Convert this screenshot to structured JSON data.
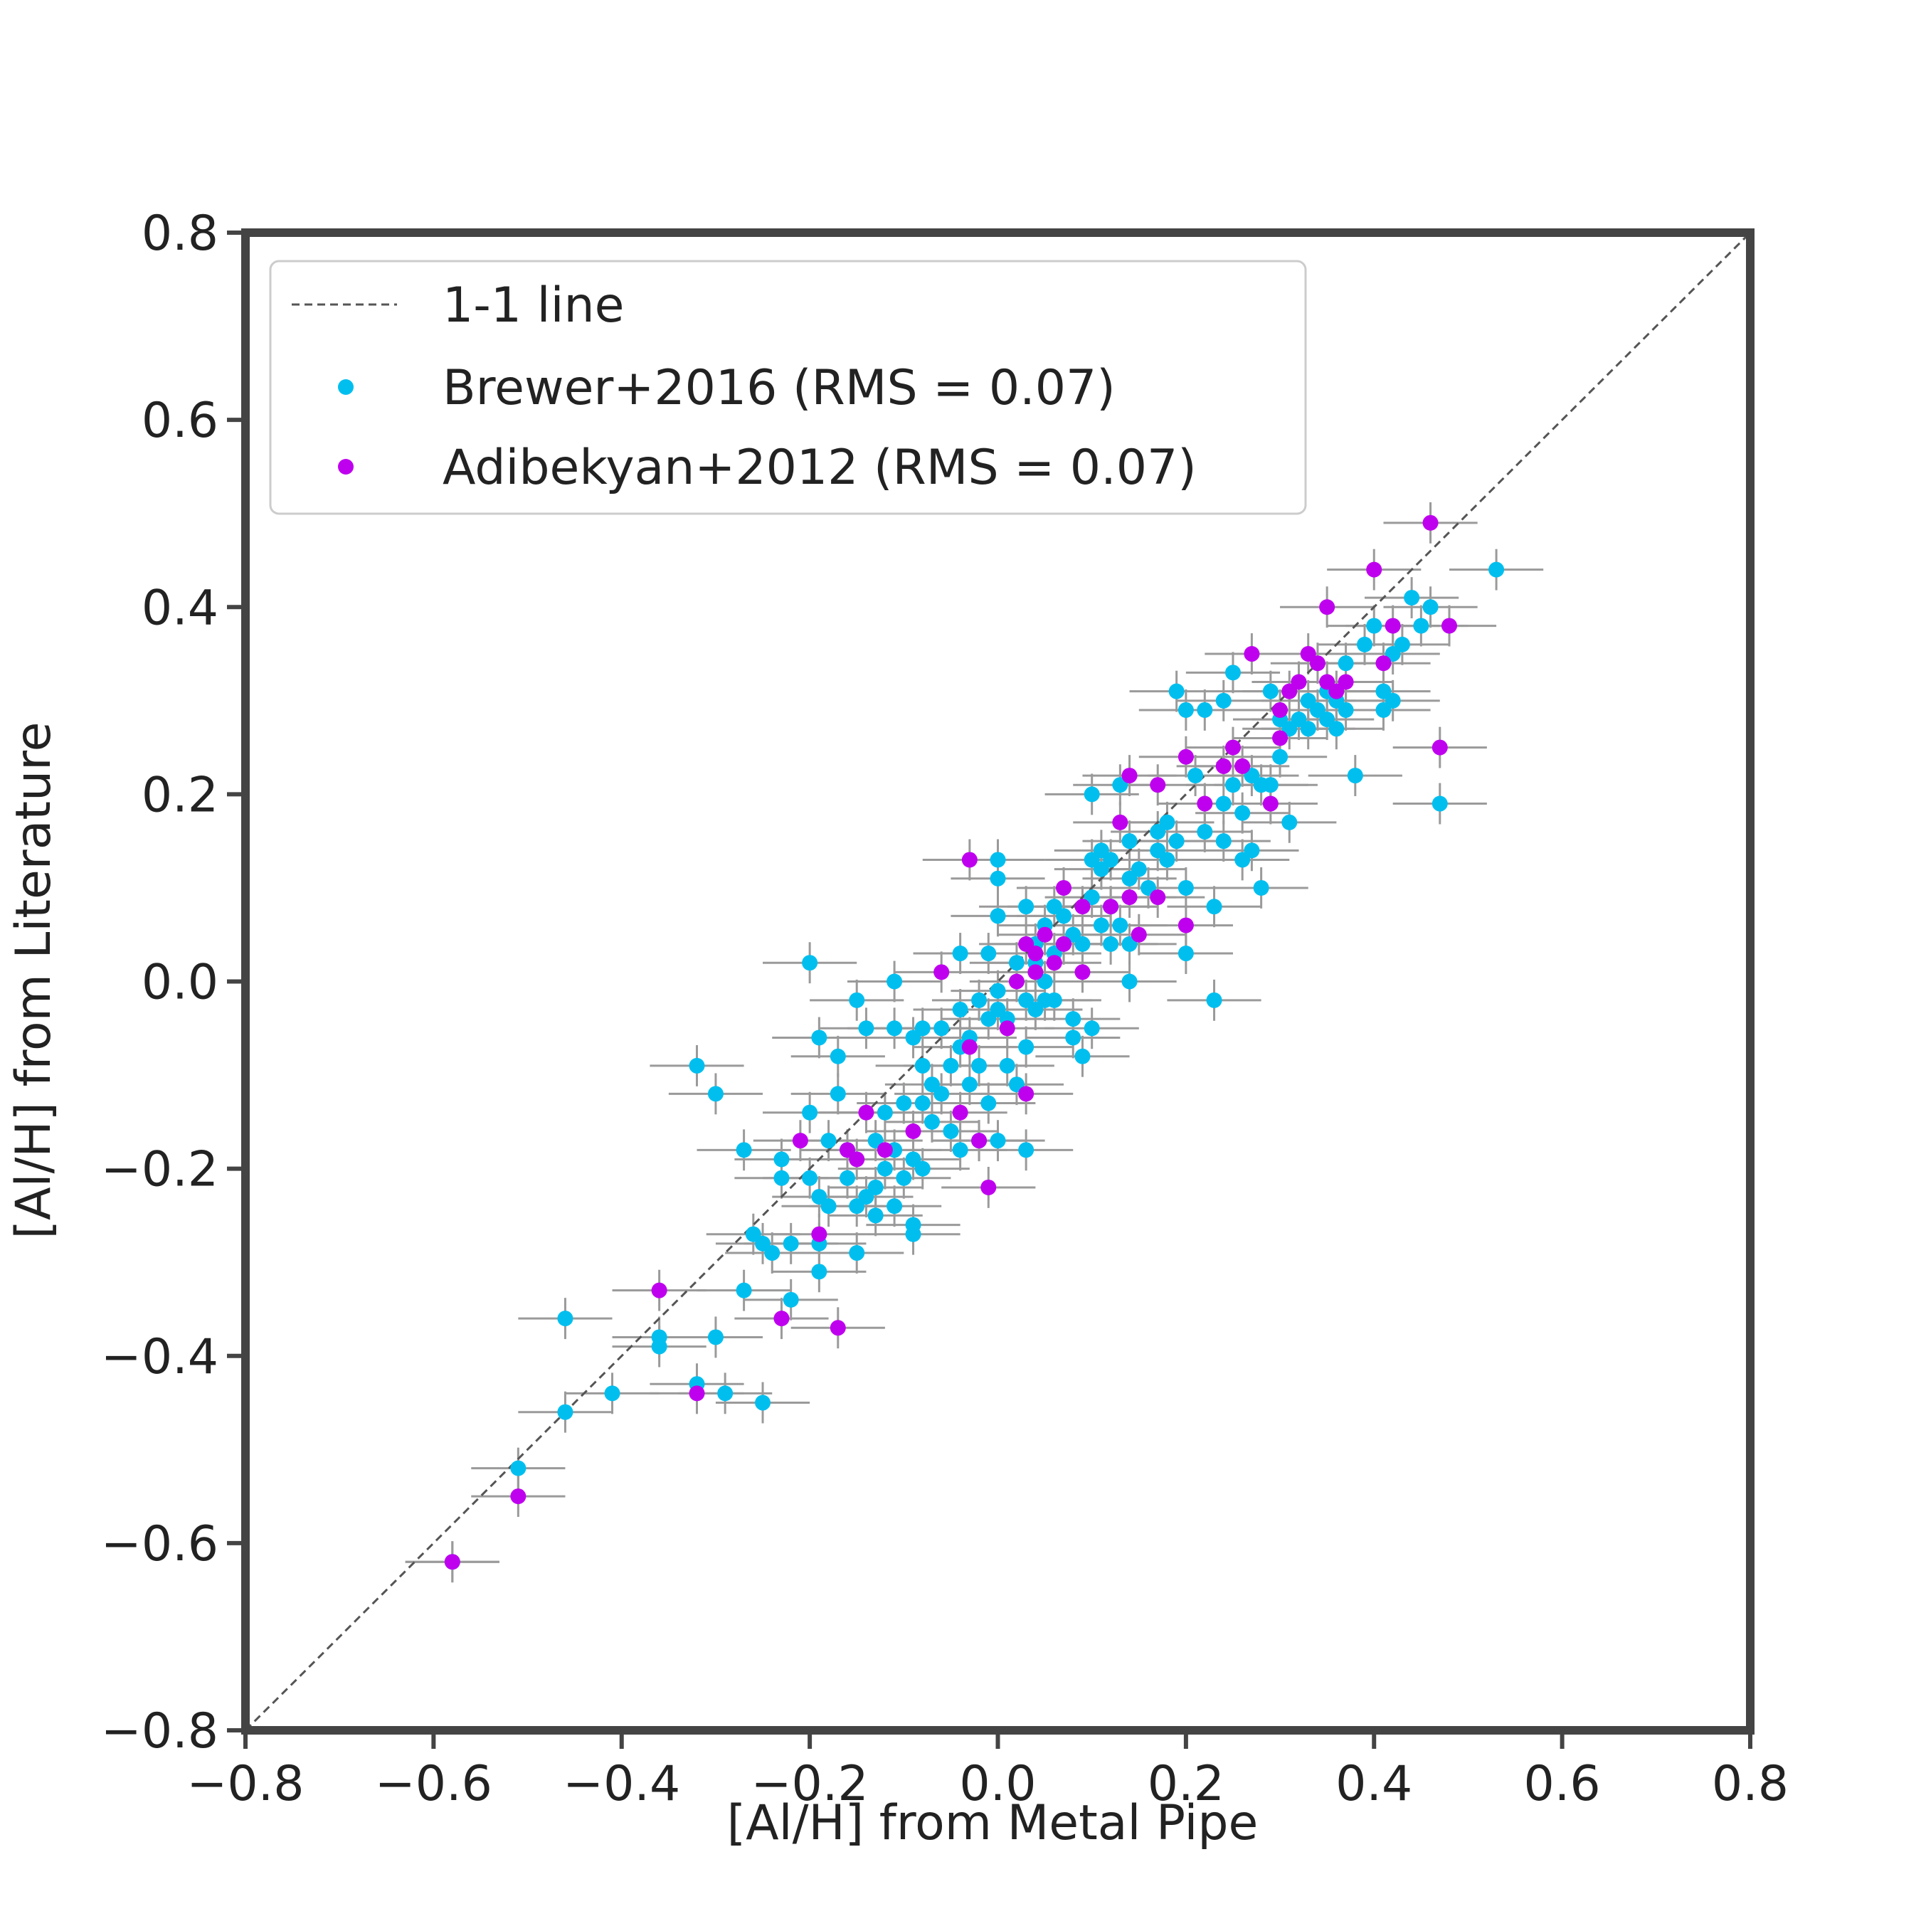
{
  "chart_data": {
    "type": "scatter",
    "xlabel": "[Al/H] from Metal Pipe",
    "ylabel": "[Al/H] from Literature",
    "xlim": [
      -0.8,
      0.8
    ],
    "ylim": [
      -0.8,
      0.8
    ],
    "xticks": [
      "−0.8",
      "−0.6",
      "−0.4",
      "−0.2",
      "0.0",
      "0.2",
      "0.4",
      "0.6",
      "0.8"
    ],
    "yticks": [
      "−0.8",
      "−0.6",
      "−0.4",
      "−0.2",
      "0.0",
      "0.2",
      "0.4",
      "0.6",
      "0.8"
    ],
    "xtick_values": [
      -0.8,
      -0.6,
      -0.4,
      -0.2,
      0.0,
      0.2,
      0.4,
      0.6,
      0.8
    ],
    "ytick_values": [
      -0.8,
      -0.6,
      -0.4,
      -0.2,
      0.0,
      0.2,
      0.4,
      0.6,
      0.8
    ],
    "grid": false,
    "legend_position": "upper-left",
    "reference_line": {
      "label": "1-1 line",
      "from": [
        -0.8,
        -0.8
      ],
      "to": [
        0.8,
        0.8
      ],
      "color": "#555555",
      "style": "dashed"
    },
    "series": [
      {
        "name": "Brewer+2016 (RMS = 0.07)",
        "color": "#00bfef",
        "points": [
          [
            -0.58,
            -0.62
          ],
          [
            -0.51,
            -0.52
          ],
          [
            -0.46,
            -0.36
          ],
          [
            -0.46,
            -0.46
          ],
          [
            -0.41,
            -0.44
          ],
          [
            -0.36,
            -0.38
          ],
          [
            -0.36,
            -0.39
          ],
          [
            -0.32,
            -0.43
          ],
          [
            -0.3,
            -0.38
          ],
          [
            -0.29,
            -0.44
          ],
          [
            -0.25,
            -0.45
          ],
          [
            -0.27,
            -0.33
          ],
          [
            -0.32,
            -0.09
          ],
          [
            -0.3,
            -0.12
          ],
          [
            -0.27,
            -0.18
          ],
          [
            -0.26,
            -0.27
          ],
          [
            -0.25,
            -0.28
          ],
          [
            -0.24,
            -0.29
          ],
          [
            -0.23,
            -0.19
          ],
          [
            -0.23,
            -0.21
          ],
          [
            -0.22,
            -0.28
          ],
          [
            -0.22,
            -0.34
          ],
          [
            -0.2,
            0.02
          ],
          [
            -0.2,
            -0.14
          ],
          [
            -0.2,
            -0.21
          ],
          [
            -0.19,
            -0.31
          ],
          [
            -0.19,
            -0.28
          ],
          [
            -0.19,
            -0.23
          ],
          [
            -0.19,
            -0.06
          ],
          [
            -0.18,
            -0.17
          ],
          [
            -0.18,
            -0.24
          ],
          [
            -0.17,
            -0.08
          ],
          [
            -0.17,
            -0.12
          ],
          [
            -0.16,
            -0.21
          ],
          [
            -0.16,
            -0.18
          ],
          [
            -0.15,
            -0.24
          ],
          [
            -0.15,
            -0.29
          ],
          [
            -0.15,
            -0.02
          ],
          [
            -0.14,
            -0.05
          ],
          [
            -0.14,
            -0.23
          ],
          [
            -0.13,
            -0.22
          ],
          [
            -0.13,
            -0.17
          ],
          [
            -0.13,
            -0.25
          ],
          [
            -0.12,
            -0.2
          ],
          [
            -0.12,
            -0.14
          ],
          [
            -0.11,
            -0.18
          ],
          [
            -0.11,
            -0.24
          ],
          [
            -0.11,
            0.0
          ],
          [
            -0.11,
            -0.05
          ],
          [
            -0.1,
            -0.13
          ],
          [
            -0.1,
            -0.21
          ],
          [
            -0.09,
            -0.26
          ],
          [
            -0.09,
            -0.27
          ],
          [
            -0.09,
            -0.06
          ],
          [
            -0.09,
            -0.19
          ],
          [
            -0.08,
            -0.2
          ],
          [
            -0.08,
            -0.09
          ],
          [
            -0.08,
            -0.13
          ],
          [
            -0.08,
            -0.05
          ],
          [
            -0.07,
            -0.11
          ],
          [
            -0.07,
            -0.15
          ],
          [
            -0.06,
            -0.05
          ],
          [
            -0.06,
            -0.12
          ],
          [
            -0.05,
            -0.09
          ],
          [
            -0.05,
            -0.16
          ],
          [
            -0.04,
            -0.18
          ],
          [
            -0.04,
            -0.07
          ],
          [
            -0.04,
            -0.03
          ],
          [
            -0.04,
            0.03
          ],
          [
            -0.03,
            -0.06
          ],
          [
            -0.03,
            -0.11
          ],
          [
            -0.02,
            -0.02
          ],
          [
            -0.02,
            -0.09
          ],
          [
            -0.02,
            -0.17
          ],
          [
            -0.01,
            0.03
          ],
          [
            -0.01,
            -0.04
          ],
          [
            -0.01,
            -0.13
          ],
          [
            0.0,
            0.13
          ],
          [
            0.0,
            0.11
          ],
          [
            0.0,
            0.07
          ],
          [
            0.0,
            -0.01
          ],
          [
            0.0,
            -0.03
          ],
          [
            0.0,
            -0.17
          ],
          [
            0.01,
            -0.04
          ],
          [
            0.01,
            -0.09
          ],
          [
            0.02,
            0.02
          ],
          [
            0.02,
            -0.11
          ],
          [
            0.03,
            0.08
          ],
          [
            0.03,
            -0.02
          ],
          [
            0.03,
            -0.07
          ],
          [
            0.03,
            -0.18
          ],
          [
            0.04,
            0.04
          ],
          [
            0.04,
            0.02
          ],
          [
            0.04,
            -0.03
          ],
          [
            0.05,
            0.06
          ],
          [
            0.05,
            0.0
          ],
          [
            0.05,
            -0.02
          ],
          [
            0.06,
            0.08
          ],
          [
            0.06,
            0.03
          ],
          [
            0.06,
            -0.02
          ],
          [
            0.07,
            0.07
          ],
          [
            0.07,
            0.04
          ],
          [
            0.08,
            0.05
          ],
          [
            0.08,
            -0.04
          ],
          [
            0.08,
            -0.06
          ],
          [
            0.09,
            0.04
          ],
          [
            0.09,
            -0.08
          ],
          [
            0.1,
            0.2
          ],
          [
            0.1,
            0.13
          ],
          [
            0.1,
            0.09
          ],
          [
            0.1,
            -0.05
          ],
          [
            0.11,
            0.14
          ],
          [
            0.11,
            0.12
          ],
          [
            0.11,
            0.06
          ],
          [
            0.12,
            0.13
          ],
          [
            0.12,
            0.08
          ],
          [
            0.12,
            0.04
          ],
          [
            0.13,
            0.21
          ],
          [
            0.13,
            0.06
          ],
          [
            0.14,
            0.15
          ],
          [
            0.14,
            0.11
          ],
          [
            0.14,
            0.04
          ],
          [
            0.14,
            0.0
          ],
          [
            0.15,
            0.12
          ],
          [
            0.16,
            0.1
          ],
          [
            0.17,
            0.16
          ],
          [
            0.17,
            0.14
          ],
          [
            0.18,
            0.17
          ],
          [
            0.18,
            0.13
          ],
          [
            0.19,
            0.31
          ],
          [
            0.19,
            0.15
          ],
          [
            0.2,
            0.29
          ],
          [
            0.2,
            0.1
          ],
          [
            0.2,
            0.03
          ],
          [
            0.21,
            0.22
          ],
          [
            0.22,
            0.29
          ],
          [
            0.22,
            0.16
          ],
          [
            0.23,
            0.08
          ],
          [
            0.23,
            -0.02
          ],
          [
            0.24,
            0.3
          ],
          [
            0.24,
            0.19
          ],
          [
            0.24,
            0.15
          ],
          [
            0.25,
            0.33
          ],
          [
            0.25,
            0.21
          ],
          [
            0.26,
            0.18
          ],
          [
            0.26,
            0.13
          ],
          [
            0.27,
            0.22
          ],
          [
            0.27,
            0.14
          ],
          [
            0.28,
            0.21
          ],
          [
            0.28,
            0.1
          ],
          [
            0.29,
            0.31
          ],
          [
            0.29,
            0.21
          ],
          [
            0.3,
            0.24
          ],
          [
            0.3,
            0.28
          ],
          [
            0.31,
            0.27
          ],
          [
            0.31,
            0.17
          ],
          [
            0.32,
            0.28
          ],
          [
            0.33,
            0.27
          ],
          [
            0.33,
            0.3
          ],
          [
            0.34,
            0.29
          ],
          [
            0.35,
            0.31
          ],
          [
            0.35,
            0.28
          ],
          [
            0.36,
            0.3
          ],
          [
            0.36,
            0.27
          ],
          [
            0.37,
            0.29
          ],
          [
            0.37,
            0.34
          ],
          [
            0.38,
            0.22
          ],
          [
            0.39,
            0.36
          ],
          [
            0.4,
            0.38
          ],
          [
            0.41,
            0.31
          ],
          [
            0.41,
            0.29
          ],
          [
            0.42,
            0.3
          ],
          [
            0.42,
            0.35
          ],
          [
            0.43,
            0.36
          ],
          [
            0.44,
            0.41
          ],
          [
            0.45,
            0.38
          ],
          [
            0.46,
            0.4
          ],
          [
            0.47,
            0.19
          ],
          [
            0.53,
            0.44
          ]
        ]
      },
      {
        "name": "Adibekyan+2012 (RMS = 0.07)",
        "color": "#bf00ef",
        "points": [
          [
            -0.58,
            -0.62
          ],
          [
            -0.51,
            -0.55
          ],
          [
            -0.36,
            -0.33
          ],
          [
            -0.32,
            -0.44
          ],
          [
            -0.23,
            -0.36
          ],
          [
            -0.21,
            -0.17
          ],
          [
            -0.19,
            -0.27
          ],
          [
            -0.17,
            -0.37
          ],
          [
            -0.16,
            -0.18
          ],
          [
            -0.15,
            -0.19
          ],
          [
            -0.14,
            -0.14
          ],
          [
            -0.12,
            -0.18
          ],
          [
            -0.09,
            -0.16
          ],
          [
            -0.06,
            0.01
          ],
          [
            -0.04,
            -0.14
          ],
          [
            -0.03,
            0.13
          ],
          [
            -0.03,
            -0.07
          ],
          [
            -0.02,
            -0.17
          ],
          [
            -0.01,
            -0.22
          ],
          [
            0.01,
            -0.05
          ],
          [
            0.02,
            0.0
          ],
          [
            0.03,
            -0.12
          ],
          [
            0.03,
            0.04
          ],
          [
            0.04,
            0.03
          ],
          [
            0.04,
            0.01
          ],
          [
            0.05,
            0.05
          ],
          [
            0.06,
            0.02
          ],
          [
            0.07,
            0.1
          ],
          [
            0.07,
            0.04
          ],
          [
            0.09,
            0.08
          ],
          [
            0.09,
            0.01
          ],
          [
            0.12,
            0.08
          ],
          [
            0.13,
            0.17
          ],
          [
            0.14,
            0.22
          ],
          [
            0.14,
            0.09
          ],
          [
            0.15,
            0.05
          ],
          [
            0.17,
            0.21
          ],
          [
            0.17,
            0.09
          ],
          [
            0.2,
            0.24
          ],
          [
            0.2,
            0.06
          ],
          [
            0.22,
            0.19
          ],
          [
            0.24,
            0.23
          ],
          [
            0.25,
            0.25
          ],
          [
            0.26,
            0.23
          ],
          [
            0.27,
            0.35
          ],
          [
            0.29,
            0.19
          ],
          [
            0.3,
            0.29
          ],
          [
            0.3,
            0.26
          ],
          [
            0.31,
            0.31
          ],
          [
            0.32,
            0.32
          ],
          [
            0.33,
            0.35
          ],
          [
            0.34,
            0.34
          ],
          [
            0.35,
            0.4
          ],
          [
            0.35,
            0.32
          ],
          [
            0.36,
            0.31
          ],
          [
            0.37,
            0.32
          ],
          [
            0.4,
            0.44
          ],
          [
            0.41,
            0.34
          ],
          [
            0.42,
            0.38
          ],
          [
            0.46,
            0.49
          ],
          [
            0.47,
            0.25
          ],
          [
            0.48,
            0.38
          ]
        ]
      }
    ]
  }
}
